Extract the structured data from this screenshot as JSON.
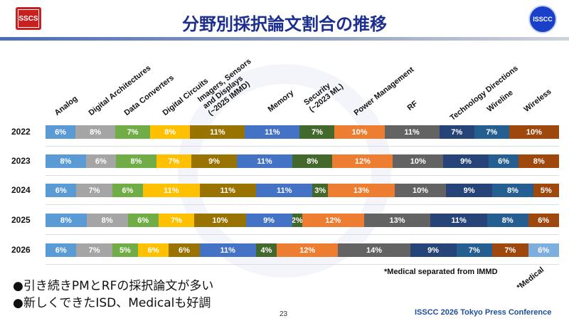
{
  "header": {
    "title": "分野別採択論文割合の推移",
    "logo_left": "SSCS",
    "logo_right": "ISSCC"
  },
  "chart_data": {
    "type": "bar",
    "orientation": "horizontal-stacked-100",
    "categories": [
      "Analog",
      "Digital Architectures",
      "Data Converters",
      "Digital Circuits",
      "Imagers, Sensors\nand Displays\n(~2025 IMMD)",
      "Memory",
      "Security\n(~2023 ML)",
      "Power Management",
      "RF",
      "Technology Directions",
      "Wireline",
      "Wireless",
      "*Medical"
    ],
    "colors": [
      "#5b9bd5",
      "#a5a5a5",
      "#70ad47",
      "#ffc000",
      "#997300",
      "#4472c4",
      "#43682b",
      "#ed7d31",
      "#636363",
      "#264478",
      "#255e91",
      "#9e480e",
      "#7cafdd"
    ],
    "rows": [
      {
        "year": "2022",
        "values": [
          6,
          8,
          7,
          8,
          11,
          11,
          7,
          10,
          11,
          7,
          7,
          10,
          null
        ]
      },
      {
        "year": "2023",
        "values": [
          8,
          6,
          8,
          7,
          9,
          11,
          8,
          12,
          10,
          9,
          6,
          8,
          null
        ]
      },
      {
        "year": "2024",
        "values": [
          6,
          7,
          6,
          11,
          11,
          11,
          3,
          13,
          10,
          9,
          8,
          5,
          null
        ]
      },
      {
        "year": "2025",
        "values": [
          8,
          8,
          6,
          7,
          10,
          9,
          2,
          12,
          13,
          11,
          8,
          6,
          null
        ]
      },
      {
        "year": "2026",
        "values": [
          6,
          7,
          5,
          6,
          6,
          11,
          4,
          12,
          14,
          9,
          7,
          7,
          6
        ]
      }
    ],
    "unit": "%",
    "note": "*Medical separated from IMMD"
  },
  "bullets": [
    "●引き続きPMとRFの採択論文が多い",
    "●新しくできたISD、Medicalも好調"
  ],
  "footer": {
    "page": "23",
    "conference": "ISSCC 2026 Tokyo Press Conference"
  }
}
